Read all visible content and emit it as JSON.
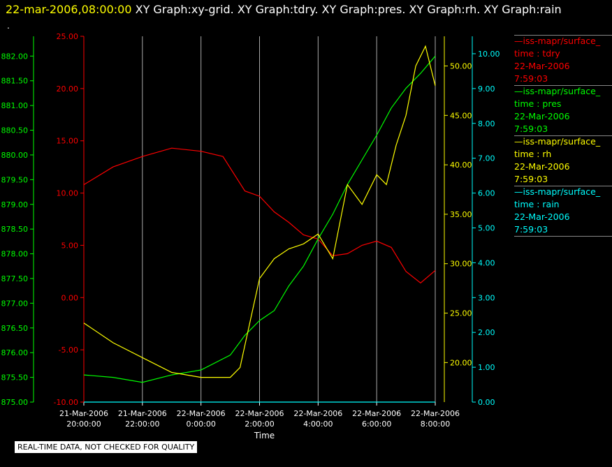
{
  "header": {
    "time_label": "22-mar-2006,08:00:00",
    "graphs_label": "XY Graph:xy-grid.  XY Graph:tdry.  XY Graph:pres.  XY Graph:rh.  XY Graph:rain"
  },
  "marker_dot": ".",
  "footer_note": "REAL-TIME DATA, NOT CHECKED FOR QUALITY",
  "colors": {
    "tdry": "#ff0000",
    "pres": "#00ff00",
    "rh": "#ffff00",
    "rain": "#00ffff",
    "grid": "#aaaaaa"
  },
  "legend": [
    {
      "name": "—iss-mapr/surface_",
      "var": "time : tdry",
      "date": "22-Mar-2006",
      "time": "7:59:03",
      "color": "#ff0000"
    },
    {
      "name": "—iss-mapr/surface_",
      "var": "time : pres",
      "date": "22-Mar-2006",
      "time": "7:59:03",
      "color": "#00ff00"
    },
    {
      "name": "—iss-mapr/surface_",
      "var": "time : rh",
      "date": "22-Mar-2006",
      "time": "7:59:03",
      "color": "#ffff00"
    },
    {
      "name": "—iss-mapr/surface_",
      "var": "time : rain",
      "date": "22-Mar-2006",
      "time": "7:59:03",
      "color": "#00ffff"
    }
  ],
  "chart_data": {
    "type": "line",
    "xlabel": "Time",
    "x_ticks": [
      {
        "date": "21-Mar-2006",
        "time": "20:00:00"
      },
      {
        "date": "21-Mar-2006",
        "time": "22:00:00"
      },
      {
        "date": "22-Mar-2006",
        "time": "0:00:00"
      },
      {
        "date": "22-Mar-2006",
        "time": "2:00:00"
      },
      {
        "date": "22-Mar-2006",
        "time": "4:00:00"
      },
      {
        "date": "22-Mar-2006",
        "time": "6:00:00"
      },
      {
        "date": "22-Mar-2006",
        "time": "8:00:00"
      }
    ],
    "x_range": [
      "2006-03-21 20:00",
      "2006-03-22 08:00"
    ],
    "grid": "vertical",
    "axes": {
      "pres": {
        "ticks": [
          "882.00",
          "881.50",
          "881.00",
          "880.50",
          "880.00",
          "879.50",
          "879.00",
          "878.50",
          "878.00",
          "877.50",
          "877.00",
          "876.50",
          "876.00",
          "875.50",
          "875.00"
        ],
        "ylim": [
          875.0,
          882.4
        ]
      },
      "tdry": {
        "ticks": [
          "25.00",
          "20.00",
          "15.00",
          "10.00",
          "5.00",
          "0.00",
          "-5.00",
          "-10.00"
        ],
        "ylim": [
          -10.0,
          25.0
        ]
      },
      "rh": {
        "ticks": [
          "50.00",
          "45.00",
          "40.00",
          "35.00",
          "30.00",
          "25.00",
          "20.00"
        ],
        "ylim": [
          16.0,
          53.0
        ]
      },
      "rain": {
        "ticks": [
          "10.00",
          "9.00",
          "8.00",
          "7.00",
          "6.00",
          "5.00",
          "4.00",
          "3.00",
          "2.00",
          "1.00",
          "0.00"
        ],
        "ylim": [
          0.0,
          10.5
        ]
      }
    },
    "series": [
      {
        "name": "tdry",
        "x": [
          "2006-03-21 20:00",
          "2006-03-21 21:00",
          "2006-03-21 22:00",
          "2006-03-21 23:00",
          "2006-03-22 00:00",
          "2006-03-22 00:45",
          "2006-03-22 01:30",
          "2006-03-22 02:00",
          "2006-03-22 02:30",
          "2006-03-22 03:00",
          "2006-03-22 03:30",
          "2006-03-22 04:00",
          "2006-03-22 04:30",
          "2006-03-22 05:00",
          "2006-03-22 05:30",
          "2006-03-22 06:00",
          "2006-03-22 06:30",
          "2006-03-22 07:00",
          "2006-03-22 07:30",
          "2006-03-22 08:00"
        ],
        "values": [
          10.8,
          12.5,
          13.5,
          14.3,
          14.0,
          13.5,
          10.2,
          9.7,
          8.2,
          7.2,
          6.0,
          5.6,
          4.0,
          4.2,
          5.0,
          5.4,
          4.8,
          2.5,
          1.4,
          2.6
        ]
      },
      {
        "name": "pres",
        "x": [
          "2006-03-21 20:00",
          "2006-03-21 21:00",
          "2006-03-21 22:00",
          "2006-03-21 23:00",
          "2006-03-22 00:00",
          "2006-03-22 01:00",
          "2006-03-22 01:30",
          "2006-03-22 02:00",
          "2006-03-22 02:30",
          "2006-03-22 03:00",
          "2006-03-22 03:30",
          "2006-03-22 04:00",
          "2006-03-22 04:30",
          "2006-03-22 05:00",
          "2006-03-22 05:30",
          "2006-03-22 06:00",
          "2006-03-22 06:30",
          "2006-03-22 07:00",
          "2006-03-22 07:30",
          "2006-03-22 08:00"
        ],
        "values": [
          875.55,
          875.5,
          875.4,
          875.55,
          875.65,
          875.95,
          876.35,
          876.65,
          876.85,
          877.35,
          877.75,
          878.3,
          878.8,
          879.4,
          879.9,
          880.4,
          880.95,
          881.35,
          881.65,
          882.0
        ]
      },
      {
        "name": "rh",
        "x": [
          "2006-03-21 20:00",
          "2006-03-21 21:00",
          "2006-03-21 22:00",
          "2006-03-21 23:00",
          "2006-03-22 00:00",
          "2006-03-22 01:00",
          "2006-03-22 01:20",
          "2006-03-22 01:40",
          "2006-03-22 02:00",
          "2006-03-22 02:30",
          "2006-03-22 03:00",
          "2006-03-22 03:30",
          "2006-03-22 04:00",
          "2006-03-22 04:30",
          "2006-03-22 05:00",
          "2006-03-22 05:30",
          "2006-03-22 06:00",
          "2006-03-22 06:20",
          "2006-03-22 06:40",
          "2006-03-22 07:00",
          "2006-03-22 07:20",
          "2006-03-22 07:40",
          "2006-03-22 08:00"
        ],
        "values": [
          24.0,
          22.0,
          20.5,
          19.0,
          18.5,
          18.5,
          19.5,
          24.0,
          28.5,
          30.5,
          31.5,
          32.0,
          33.0,
          30.5,
          38.0,
          36.0,
          39.0,
          38.0,
          42.0,
          45.0,
          50.0,
          52.0,
          48.0
        ]
      },
      {
        "name": "rain",
        "x": [
          "2006-03-21 20:00",
          "2006-03-22 08:00"
        ],
        "values": [
          0.0,
          0.0
        ]
      }
    ]
  }
}
